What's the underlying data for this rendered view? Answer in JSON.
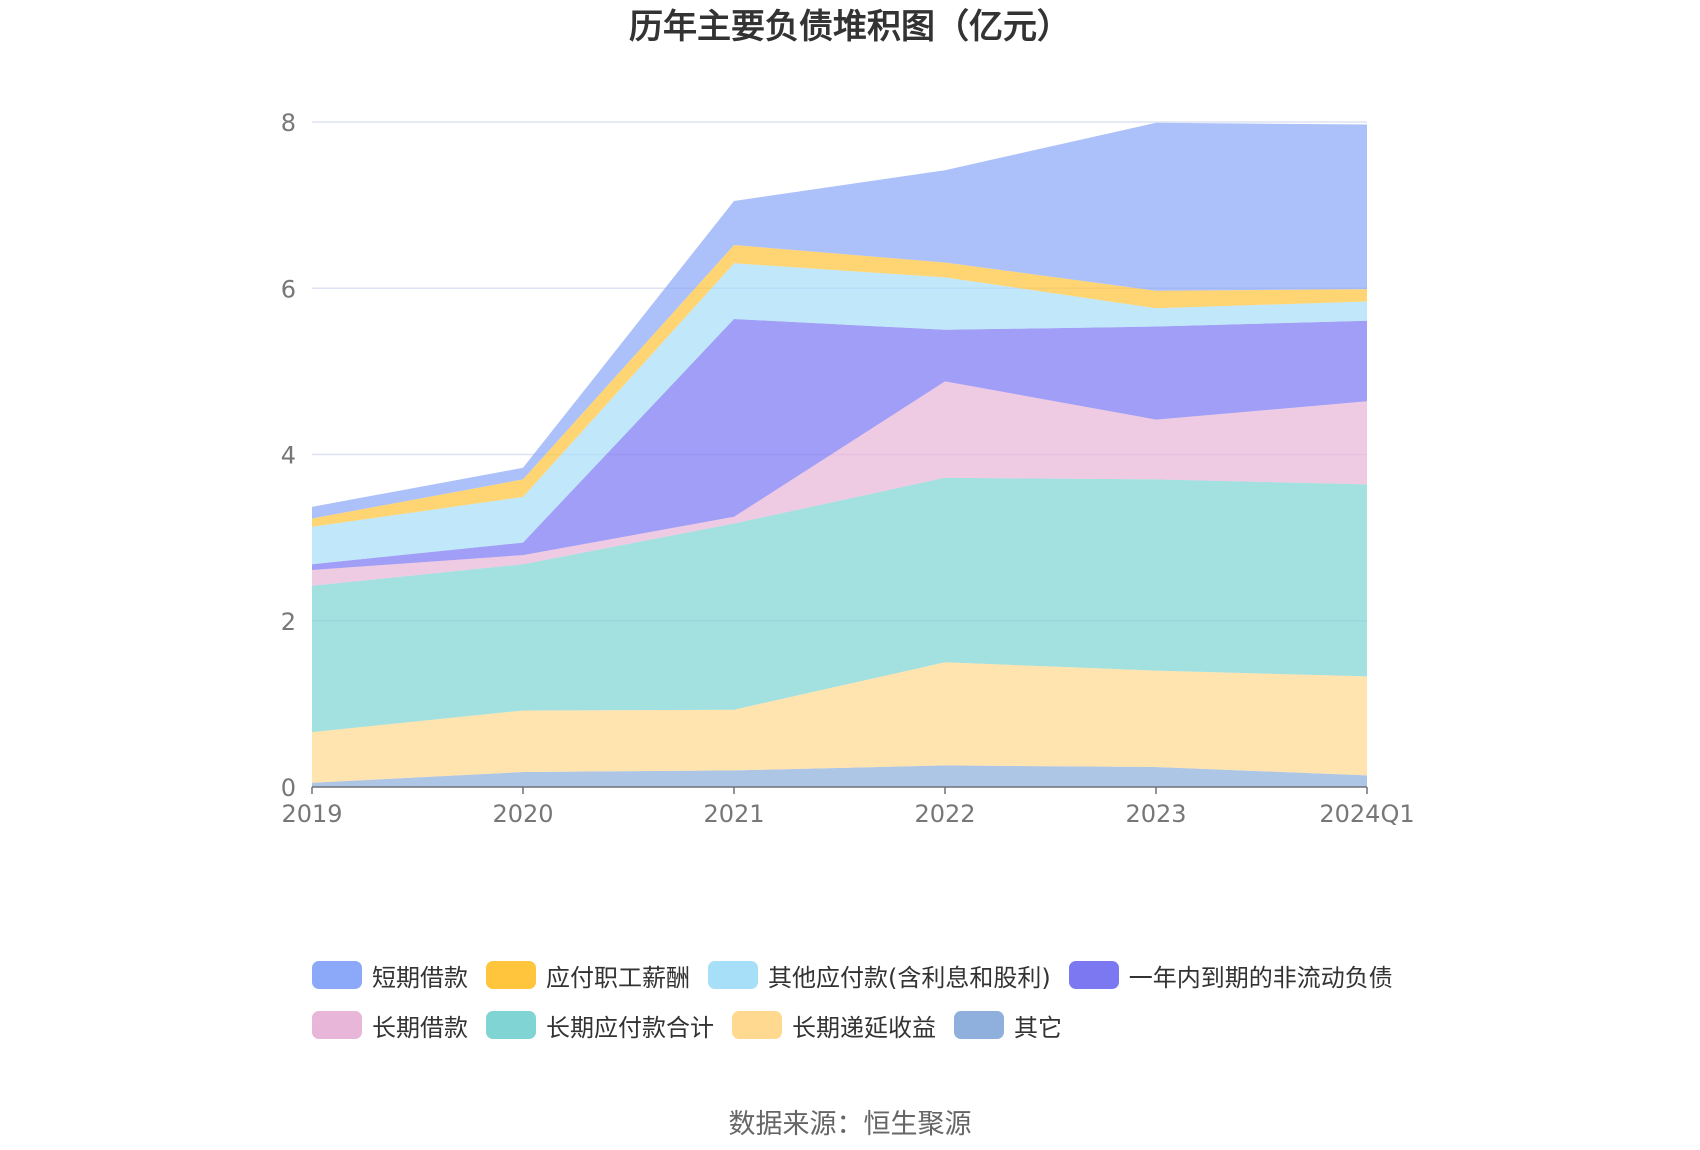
{
  "chart_data": {
    "type": "area",
    "stacked": true,
    "title": "历年主要负债堆积图（亿元）",
    "categories": [
      "2019",
      "2020",
      "2021",
      "2022",
      "2023",
      "2024Q1"
    ],
    "ylim": [
      0,
      8
    ],
    "yticks": [
      0,
      2,
      4,
      6,
      8
    ],
    "grid": true,
    "legend_position": "bottom",
    "series": [
      {
        "name": "其它",
        "color": "#8fb0dc",
        "values": [
          0.05,
          0.18,
          0.2,
          0.26,
          0.24,
          0.14
        ]
      },
      {
        "name": "长期递延收益",
        "color": "#ffd990",
        "values": [
          0.61,
          0.74,
          0.73,
          1.24,
          1.16,
          1.19
        ]
      },
      {
        "name": "长期应付款合计",
        "color": "#80d4d4",
        "values": [
          1.76,
          1.76,
          2.24,
          2.22,
          2.3,
          2.31
        ]
      },
      {
        "name": "长期借款",
        "color": "#e8b6d8",
        "values": [
          0.19,
          0.11,
          0.08,
          1.16,
          0.72,
          1.0
        ]
      },
      {
        "name": "一年内到期的非流动负债",
        "color": "#7b78f2",
        "values": [
          0.07,
          0.15,
          2.38,
          0.62,
          1.12,
          0.97
        ]
      },
      {
        "name": "其他应付款(含利息和股利)",
        "color": "#a7def8",
        "values": [
          0.45,
          0.55,
          0.67,
          0.63,
          0.22,
          0.23
        ]
      },
      {
        "name": "应付职工薪酬",
        "color": "#ffc53d",
        "values": [
          0.1,
          0.21,
          0.22,
          0.18,
          0.21,
          0.15
        ]
      },
      {
        "name": "短期借款",
        "color": "#8ca8f8",
        "values": [
          0.14,
          0.14,
          0.53,
          1.11,
          2.02,
          1.98
        ]
      }
    ],
    "legend_order": [
      "短期借款",
      "应付职工薪酬",
      "其他应付款(含利息和股利)",
      "一年内到期的非流动负债",
      "长期借款",
      "长期应付款合计",
      "长期递延收益",
      "其它"
    ]
  },
  "source_note": "数据来源：恒生聚源"
}
